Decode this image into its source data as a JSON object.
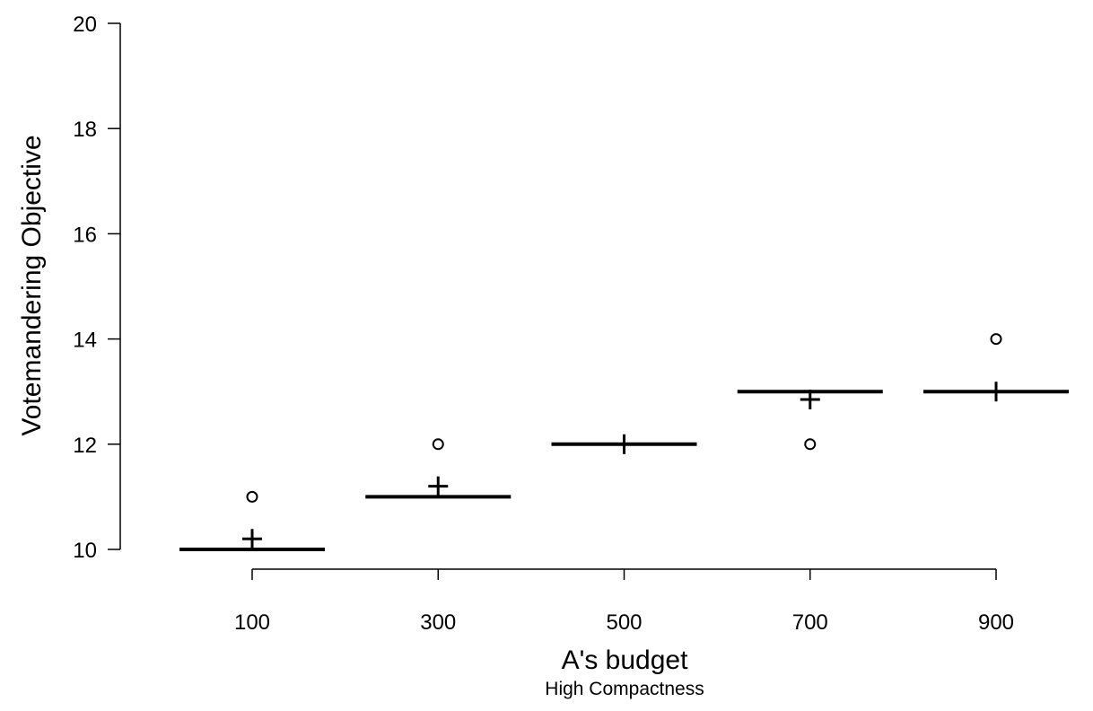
{
  "chart_data": {
    "type": "boxplot",
    "xlabel": "A's budget",
    "subtitle": "High Compactness",
    "ylabel": "Votemandering Objective",
    "categories": [
      "100",
      "300",
      "500",
      "700",
      "900"
    ],
    "ylim": [
      10,
      20
    ],
    "yticks": [
      "10",
      "12",
      "14",
      "16",
      "18",
      "20"
    ],
    "medians": [
      10,
      11,
      12,
      13,
      13
    ],
    "means": [
      10.2,
      11.2,
      12.0,
      12.85,
      13.0
    ],
    "outliers": [
      [
        11
      ],
      [
        12
      ],
      [],
      [
        12
      ],
      [
        14
      ]
    ],
    "grid": false
  }
}
